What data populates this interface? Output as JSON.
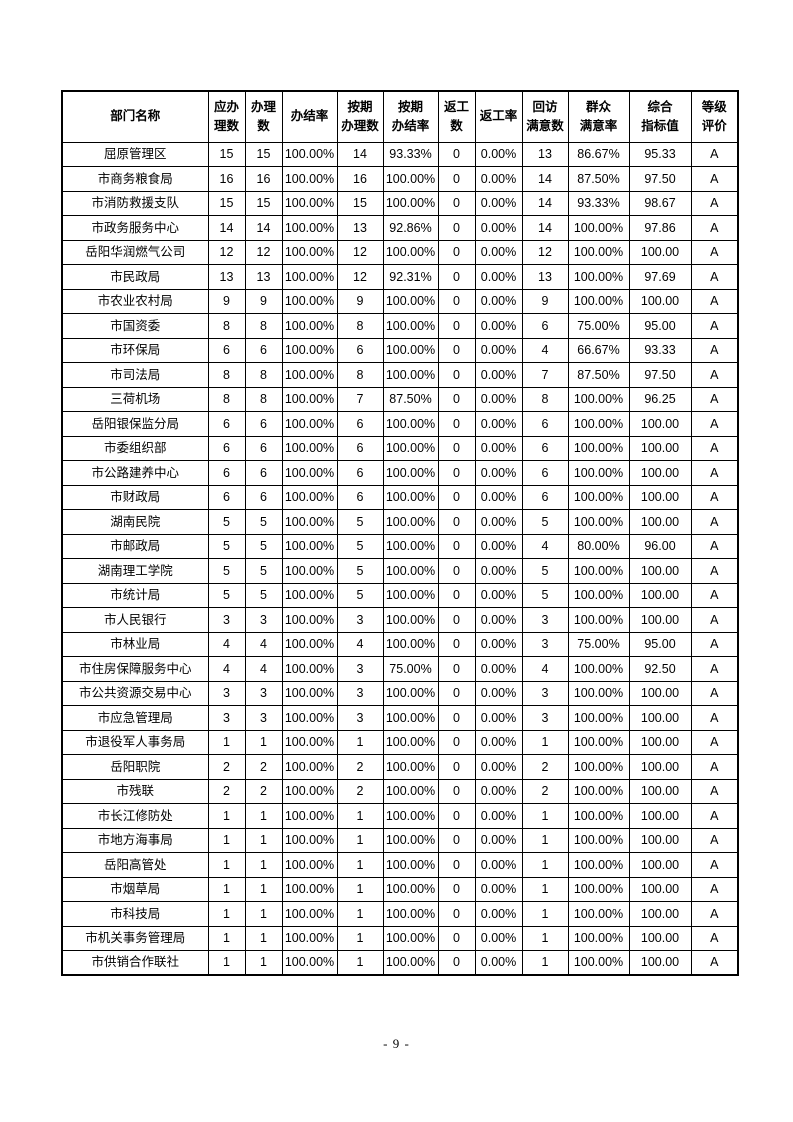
{
  "table": {
    "columns": [
      {
        "key": "department",
        "label": "部门名称"
      },
      {
        "key": "due_count",
        "label": "应办\n理数"
      },
      {
        "key": "handled_count",
        "label": "办理\n数"
      },
      {
        "key": "completion_rate",
        "label": "办结率"
      },
      {
        "key": "ontime_handled_count",
        "label": "按期\n办理数"
      },
      {
        "key": "ontime_completion_rate",
        "label": "按期\n办结率"
      },
      {
        "key": "rework_count",
        "label": "返工数"
      },
      {
        "key": "rework_rate",
        "label": "返工率"
      },
      {
        "key": "satisfied_visit_count",
        "label": "回访\n满意数"
      },
      {
        "key": "satisfaction_rate",
        "label": "群众\n满意率"
      },
      {
        "key": "composite_index",
        "label": "综合\n指标值"
      },
      {
        "key": "grade",
        "label": "等级\n评价"
      }
    ],
    "rows": [
      [
        "屈原管理区",
        "15",
        "15",
        "100.00%",
        "14",
        "93.33%",
        "0",
        "0.00%",
        "13",
        "86.67%",
        "95.33",
        "A"
      ],
      [
        "市商务粮食局",
        "16",
        "16",
        "100.00%",
        "16",
        "100.00%",
        "0",
        "0.00%",
        "14",
        "87.50%",
        "97.50",
        "A"
      ],
      [
        "市消防救援支队",
        "15",
        "15",
        "100.00%",
        "15",
        "100.00%",
        "0",
        "0.00%",
        "14",
        "93.33%",
        "98.67",
        "A"
      ],
      [
        "市政务服务中心",
        "14",
        "14",
        "100.00%",
        "13",
        "92.86%",
        "0",
        "0.00%",
        "14",
        "100.00%",
        "97.86",
        "A"
      ],
      [
        "岳阳华润燃气公司",
        "12",
        "12",
        "100.00%",
        "12",
        "100.00%",
        "0",
        "0.00%",
        "12",
        "100.00%",
        "100.00",
        "A"
      ],
      [
        "市民政局",
        "13",
        "13",
        "100.00%",
        "12",
        "92.31%",
        "0",
        "0.00%",
        "13",
        "100.00%",
        "97.69",
        "A"
      ],
      [
        "市农业农村局",
        "9",
        "9",
        "100.00%",
        "9",
        "100.00%",
        "0",
        "0.00%",
        "9",
        "100.00%",
        "100.00",
        "A"
      ],
      [
        "市国资委",
        "8",
        "8",
        "100.00%",
        "8",
        "100.00%",
        "0",
        "0.00%",
        "6",
        "75.00%",
        "95.00",
        "A"
      ],
      [
        "市环保局",
        "6",
        "6",
        "100.00%",
        "6",
        "100.00%",
        "0",
        "0.00%",
        "4",
        "66.67%",
        "93.33",
        "A"
      ],
      [
        "市司法局",
        "8",
        "8",
        "100.00%",
        "8",
        "100.00%",
        "0",
        "0.00%",
        "7",
        "87.50%",
        "97.50",
        "A"
      ],
      [
        "三荷机场",
        "8",
        "8",
        "100.00%",
        "7",
        "87.50%",
        "0",
        "0.00%",
        "8",
        "100.00%",
        "96.25",
        "A"
      ],
      [
        "岳阳银保监分局",
        "6",
        "6",
        "100.00%",
        "6",
        "100.00%",
        "0",
        "0.00%",
        "6",
        "100.00%",
        "100.00",
        "A"
      ],
      [
        "市委组织部",
        "6",
        "6",
        "100.00%",
        "6",
        "100.00%",
        "0",
        "0.00%",
        "6",
        "100.00%",
        "100.00",
        "A"
      ],
      [
        "市公路建养中心",
        "6",
        "6",
        "100.00%",
        "6",
        "100.00%",
        "0",
        "0.00%",
        "6",
        "100.00%",
        "100.00",
        "A"
      ],
      [
        "市财政局",
        "6",
        "6",
        "100.00%",
        "6",
        "100.00%",
        "0",
        "0.00%",
        "6",
        "100.00%",
        "100.00",
        "A"
      ],
      [
        "湖南民院",
        "5",
        "5",
        "100.00%",
        "5",
        "100.00%",
        "0",
        "0.00%",
        "5",
        "100.00%",
        "100.00",
        "A"
      ],
      [
        "市邮政局",
        "5",
        "5",
        "100.00%",
        "5",
        "100.00%",
        "0",
        "0.00%",
        "4",
        "80.00%",
        "96.00",
        "A"
      ],
      [
        "湖南理工学院",
        "5",
        "5",
        "100.00%",
        "5",
        "100.00%",
        "0",
        "0.00%",
        "5",
        "100.00%",
        "100.00",
        "A"
      ],
      [
        "市统计局",
        "5",
        "5",
        "100.00%",
        "5",
        "100.00%",
        "0",
        "0.00%",
        "5",
        "100.00%",
        "100.00",
        "A"
      ],
      [
        "市人民银行",
        "3",
        "3",
        "100.00%",
        "3",
        "100.00%",
        "0",
        "0.00%",
        "3",
        "100.00%",
        "100.00",
        "A"
      ],
      [
        "市林业局",
        "4",
        "4",
        "100.00%",
        "4",
        "100.00%",
        "0",
        "0.00%",
        "3",
        "75.00%",
        "95.00",
        "A"
      ],
      [
        "市住房保障服务中心",
        "4",
        "4",
        "100.00%",
        "3",
        "75.00%",
        "0",
        "0.00%",
        "4",
        "100.00%",
        "92.50",
        "A"
      ],
      [
        "市公共资源交易中心",
        "3",
        "3",
        "100.00%",
        "3",
        "100.00%",
        "0",
        "0.00%",
        "3",
        "100.00%",
        "100.00",
        "A"
      ],
      [
        "市应急管理局",
        "3",
        "3",
        "100.00%",
        "3",
        "100.00%",
        "0",
        "0.00%",
        "3",
        "100.00%",
        "100.00",
        "A"
      ],
      [
        "市退役军人事务局",
        "1",
        "1",
        "100.00%",
        "1",
        "100.00%",
        "0",
        "0.00%",
        "1",
        "100.00%",
        "100.00",
        "A"
      ],
      [
        "岳阳职院",
        "2",
        "2",
        "100.00%",
        "2",
        "100.00%",
        "0",
        "0.00%",
        "2",
        "100.00%",
        "100.00",
        "A"
      ],
      [
        "市残联",
        "2",
        "2",
        "100.00%",
        "2",
        "100.00%",
        "0",
        "0.00%",
        "2",
        "100.00%",
        "100.00",
        "A"
      ],
      [
        "市长江修防处",
        "1",
        "1",
        "100.00%",
        "1",
        "100.00%",
        "0",
        "0.00%",
        "1",
        "100.00%",
        "100.00",
        "A"
      ],
      [
        "市地方海事局",
        "1",
        "1",
        "100.00%",
        "1",
        "100.00%",
        "0",
        "0.00%",
        "1",
        "100.00%",
        "100.00",
        "A"
      ],
      [
        "岳阳高管处",
        "1",
        "1",
        "100.00%",
        "1",
        "100.00%",
        "0",
        "0.00%",
        "1",
        "100.00%",
        "100.00",
        "A"
      ],
      [
        "市烟草局",
        "1",
        "1",
        "100.00%",
        "1",
        "100.00%",
        "0",
        "0.00%",
        "1",
        "100.00%",
        "100.00",
        "A"
      ],
      [
        "市科技局",
        "1",
        "1",
        "100.00%",
        "1",
        "100.00%",
        "0",
        "0.00%",
        "1",
        "100.00%",
        "100.00",
        "A"
      ],
      [
        "市机关事务管理局",
        "1",
        "1",
        "100.00%",
        "1",
        "100.00%",
        "0",
        "0.00%",
        "1",
        "100.00%",
        "100.00",
        "A"
      ],
      [
        "市供销合作联社",
        "1",
        "1",
        "100.00%",
        "1",
        "100.00%",
        "0",
        "0.00%",
        "1",
        "100.00%",
        "100.00",
        "A"
      ]
    ]
  },
  "footer": {
    "page_number": "- 9 -"
  }
}
